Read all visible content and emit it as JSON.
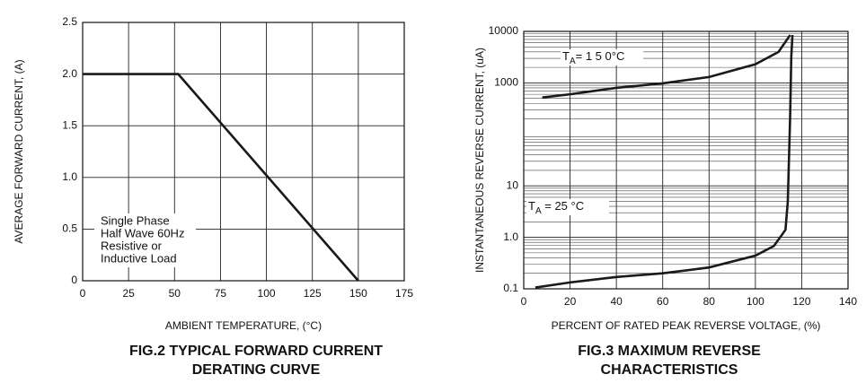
{
  "chart_data": [
    {
      "type": "line",
      "title": [
        "FIG.2 TYPICAL FORWARD CURRENT",
        "DERATING CURVE"
      ],
      "x_label": "AMBIENT TEMPERATURE, (°C)",
      "y_label": "AVERAGE FORWARD CURRENT, (A)",
      "x": [
        0,
        52,
        150
      ],
      "values": [
        2,
        2,
        0
      ],
      "color": "#1a1a1a",
      "xlim": [
        0,
        175
      ],
      "xticks": [
        0,
        25,
        50,
        75,
        100,
        125,
        150,
        175
      ],
      "ylim": [
        0,
        2.5
      ],
      "yticks": [
        0,
        0.5,
        {
          "value": 1,
          "label": "1.0"
        },
        1.5,
        {
          "value": 2,
          "label": "2.0"
        },
        2.5
      ],
      "grid": true,
      "annotation": [
        "Single Phase",
        "Half Wave 60Hz",
        "Resistive or",
        "Inductive Load"
      ]
    },
    {
      "type": "line",
      "title": [
        "FIG.3 MAXIMUM  REVERSE",
        "CHARACTERISTICS"
      ],
      "x_label": "PERCENT OF RATED PEAK REVERSE VOLTAGE, (%)",
      "y_label": "INSTANTANEOUS REVERSE CURRENT, (uA)",
      "log_y": true,
      "series": [
        {
          "label": {
            "main": "T",
            "sub": "A",
            "rest": "= 1 5 0°C"
          },
          "color": "#1a1a1a",
          "x": [
            8,
            20,
            40,
            60,
            80,
            100,
            110,
            115
          ],
          "values": [
            520,
            600,
            800,
            980,
            1300,
            2300,
            4000,
            8500
          ]
        },
        {
          "label": {
            "main": "T",
            "sub": "A",
            "rest": " = 25 °C"
          },
          "color": "#1a1a1a",
          "x": [
            5,
            20,
            40,
            60,
            80,
            100,
            108,
            113,
            114,
            115,
            115.5,
            116
          ],
          "values": [
            0.106,
            0.133,
            0.17,
            0.2,
            0.26,
            0.44,
            0.68,
            1.4,
            5,
            215,
            3200,
            8500
          ]
        }
      ],
      "xlim": [
        0,
        140
      ],
      "xticks": [
        0,
        20,
        40,
        60,
        80,
        100,
        120,
        140
      ],
      "ylim": [
        0.1,
        10000
      ],
      "yticks": [
        0.1,
        {
          "value": 1,
          "label": "1.0"
        },
        10,
        1000,
        10000
      ],
      "grid": true
    }
  ]
}
